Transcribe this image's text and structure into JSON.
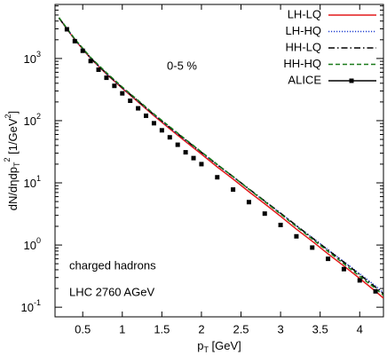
{
  "chart_data": {
    "type": "line",
    "log_y": true,
    "xlabel_parts": [
      "p",
      "T",
      " [GeV]"
    ],
    "ylabel_parts": [
      "dN/dηdp",
      "T",
      "2",
      " [1/GeV",
      "2",
      "]"
    ],
    "annotations": [
      "0-5 %",
      "charged hadrons",
      "LHC 2760 AGeV"
    ],
    "legend": "upper right",
    "xlim": [
      0.15,
      4.3
    ],
    "ylim": [
      0.07,
      7400
    ],
    "xticks": [
      0.5,
      1,
      1.5,
      2,
      2.5,
      3,
      3.5,
      4
    ],
    "yticks": [
      {
        "value": 0.1,
        "label": "10",
        "exponent": "-1"
      },
      {
        "value": 1,
        "label": "10",
        "exponent": "0"
      },
      {
        "value": 10,
        "label": "10",
        "exponent": "1"
      },
      {
        "value": 100,
        "label": "10",
        "exponent": "2"
      },
      {
        "value": 1000,
        "label": "10",
        "exponent": "3"
      }
    ],
    "x": [
      0.2,
      0.4,
      0.6,
      0.8,
      1.0,
      1.2,
      1.4,
      1.6,
      1.8,
      2.0,
      2.2,
      2.4,
      2.6,
      2.8,
      3.0,
      3.2,
      3.4,
      3.6,
      3.8,
      4.0,
      4.2,
      4.3
    ],
    "series": [
      {
        "name": "LH-LQ",
        "color": "#e41a1c",
        "style": "solid",
        "values": [
          4470,
          2000,
          1000,
          562,
          331,
          200,
          120,
          74,
          46,
          29,
          18,
          11.5,
          7.2,
          4.6,
          2.9,
          1.8,
          1.15,
          0.72,
          0.46,
          0.29,
          0.18,
          0.14
        ]
      },
      {
        "name": "LH-HQ",
        "color": "#1f3fcf",
        "style": "dotted",
        "values": [
          4470,
          2010,
          1010,
          570,
          337,
          205,
          124,
          77,
          48.5,
          30.8,
          19.4,
          12.5,
          7.9,
          5.1,
          3.25,
          2.05,
          1.32,
          0.84,
          0.54,
          0.345,
          0.22,
          0.17
        ]
      },
      {
        "name": "HH-LQ",
        "color": "#000000",
        "style": "dashdot",
        "values": [
          4500,
          2030,
          1020,
          575,
          340,
          207,
          125,
          78,
          49,
          31,
          19.6,
          12.6,
          8.0,
          5.1,
          3.25,
          2.05,
          1.3,
          0.83,
          0.53,
          0.335,
          0.21,
          0.165
        ]
      },
      {
        "name": "HH-HQ",
        "color": "#1a7a1a",
        "style": "dashed",
        "values": [
          4550,
          2060,
          1040,
          590,
          348,
          212,
          128,
          80,
          50,
          31.5,
          19.8,
          12.6,
          7.9,
          5.0,
          3.15,
          1.98,
          1.25,
          0.79,
          0.5,
          0.315,
          0.2,
          0.155
        ]
      },
      {
        "name": "ALICE",
        "color": "#000000",
        "style": "points",
        "x": [
          0.3,
          0.4,
          0.5,
          0.6,
          0.7,
          0.8,
          0.9,
          1.0,
          1.1,
          1.2,
          1.3,
          1.4,
          1.5,
          1.6,
          1.7,
          1.8,
          1.9,
          2.0,
          2.2,
          2.4,
          2.6,
          2.8,
          3.0,
          3.2,
          3.4,
          3.6,
          3.8,
          4.0,
          4.2
        ],
        "values": [
          2950,
          1900,
          1330,
          910,
          660,
          490,
          363,
          275,
          209,
          158,
          120,
          91,
          70,
          54,
          41,
          31,
          25,
          20,
          12.3,
          7.8,
          4.9,
          3.2,
          2.1,
          1.38,
          0.91,
          0.6,
          0.41,
          0.27,
          0.18
        ]
      }
    ]
  }
}
